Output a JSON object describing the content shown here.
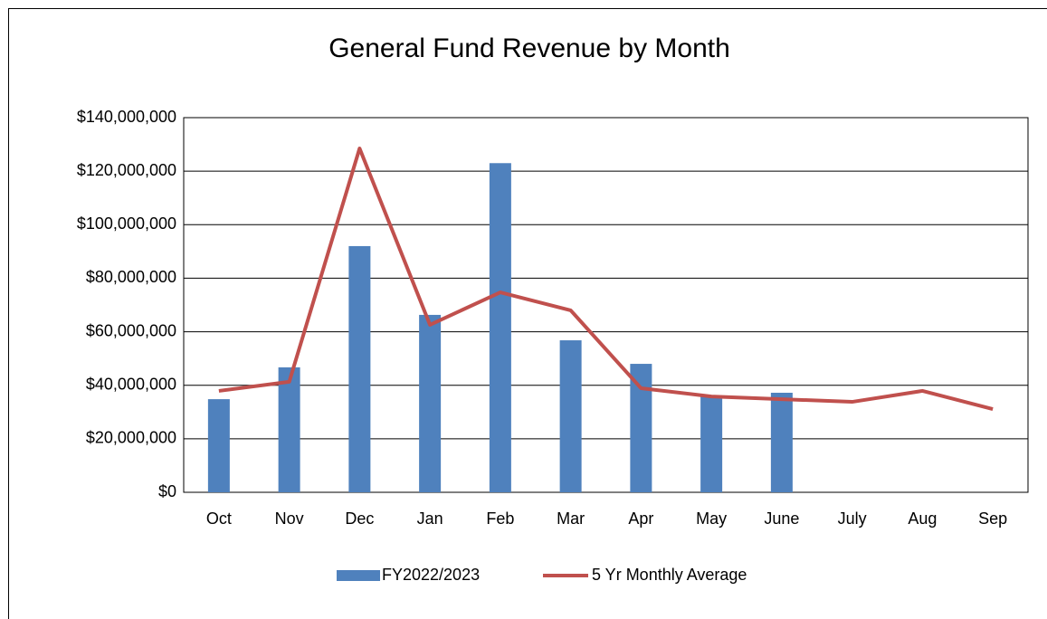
{
  "chart_data": {
    "type": "bar_line",
    "title": "General Fund Revenue by Month",
    "categories": [
      "Oct",
      "Nov",
      "Dec",
      "Jan",
      "Feb",
      "Mar",
      "Apr",
      "May",
      "June",
      "July",
      "Aug",
      "Sep"
    ],
    "series": [
      {
        "name": "FY2022/2023",
        "type": "bar",
        "color": "#4f81bd",
        "values": [
          34800000,
          46700000,
          92000000,
          66300000,
          123000000,
          56800000,
          48000000,
          36200000,
          37200000,
          null,
          null,
          null
        ]
      },
      {
        "name": "5 Yr Monthly Average",
        "type": "line",
        "color": "#c0504d",
        "values": [
          37900000,
          41300000,
          128500000,
          62600000,
          74700000,
          68000000,
          38900000,
          35800000,
          34800000,
          33800000,
          37900000,
          31100000
        ]
      }
    ],
    "ylim": [
      0,
      140000000
    ],
    "yticks": [
      {
        "value": 0,
        "label": "$0"
      },
      {
        "value": 20000000,
        "label": "$20,000,000"
      },
      {
        "value": 40000000,
        "label": "$40,000,000"
      },
      {
        "value": 60000000,
        "label": "$60,000,000"
      },
      {
        "value": 80000000,
        "label": "$80,000,000"
      },
      {
        "value": 100000000,
        "label": "$100,000,000"
      },
      {
        "value": 120000000,
        "label": "$120,000,000"
      },
      {
        "value": 140000000,
        "label": "$140,000,000"
      }
    ],
    "grid": true,
    "legend": "bottom"
  }
}
